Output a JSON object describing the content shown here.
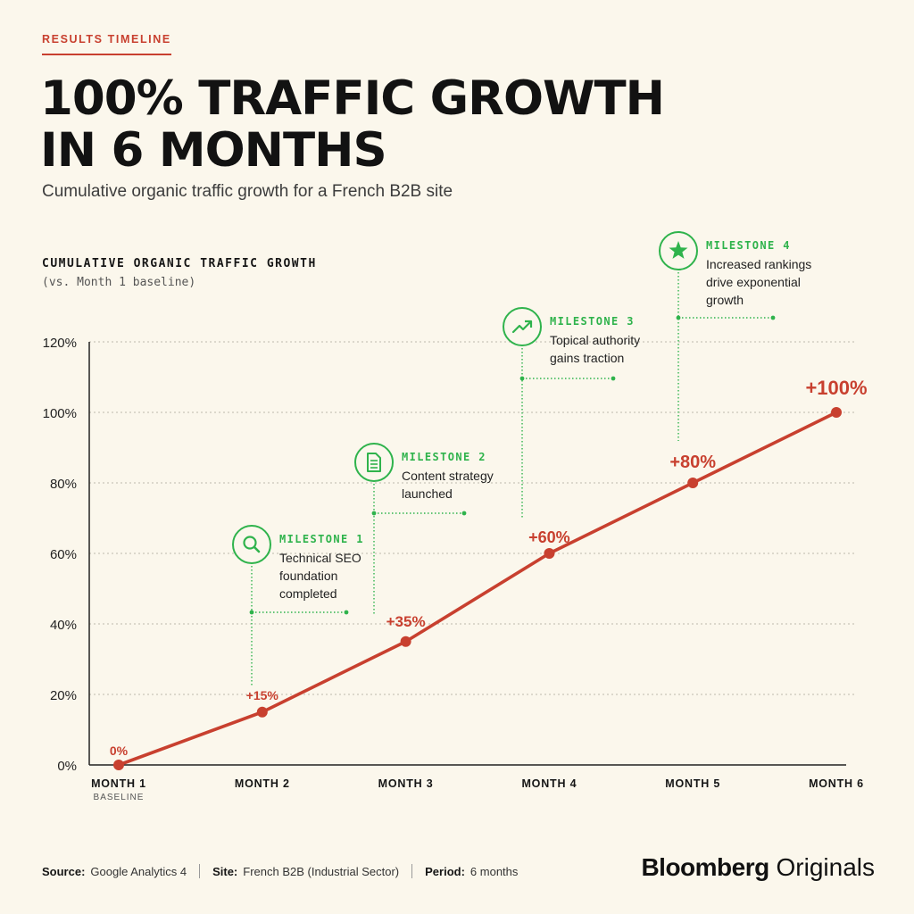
{
  "header": {
    "kicker": "RESULTS TIMELINE",
    "title_line1": "100% TRAFFIC GROWTH",
    "title_line2": "IN 6 MONTHS",
    "subtitle": "Cumulative organic traffic growth for a French B2B site"
  },
  "chart_data": {
    "type": "line",
    "title": "CUMULATIVE ORGANIC TRAFFIC GROWTH",
    "subtitle": "(vs. Month 1 baseline)",
    "categories": [
      "MONTH 1",
      "MONTH 2",
      "MONTH 3",
      "MONTH 4",
      "MONTH 5",
      "MONTH 6"
    ],
    "category_sublabels": [
      "BASELINE",
      "",
      "",
      "",
      "",
      ""
    ],
    "series": [
      {
        "values": [
          0,
          15,
          35,
          60,
          80,
          100
        ],
        "data_labels": [
          "0%",
          "+15%",
          "+35%",
          "+60%",
          "+80%",
          "+100%"
        ],
        "color": "#c8402f"
      }
    ],
    "yticks": [
      "0%",
      "20%",
      "40%",
      "60%",
      "80%",
      "100%",
      "120%"
    ],
    "ylim": [
      0,
      120
    ],
    "grid": true,
    "milestones": [
      {
        "heading": "MILESTONE 1",
        "text": [
          "Technical SEO",
          "foundation",
          "completed"
        ],
        "icon": "magnifier-icon",
        "month_index": 1
      },
      {
        "heading": "MILESTONE 2",
        "text": [
          "Content strategy",
          "launched"
        ],
        "icon": "document-icon",
        "month_index": 2
      },
      {
        "heading": "MILESTONE 3",
        "text": [
          "Topical authority",
          "gains traction"
        ],
        "icon": "trend-up-icon",
        "month_index": 3
      },
      {
        "heading": "MILESTONE 4",
        "text": [
          "Increased rankings",
          "drive exponential",
          "growth"
        ],
        "icon": "star-icon",
        "month_index": 4
      }
    ],
    "colors": {
      "line": "#c8402f",
      "milestone": "#2fb34c",
      "grid": "#bdb8ab",
      "axis": "#222222"
    }
  },
  "footer": {
    "source_label": "Source:",
    "source_value": "Google Analytics 4",
    "site_label": "Site:",
    "site_value": "French B2B (Industrial Sector)",
    "period_label": "Period:",
    "period_value": "6 months"
  },
  "brand": {
    "strong": "Bloomberg",
    "light": " Originals"
  }
}
